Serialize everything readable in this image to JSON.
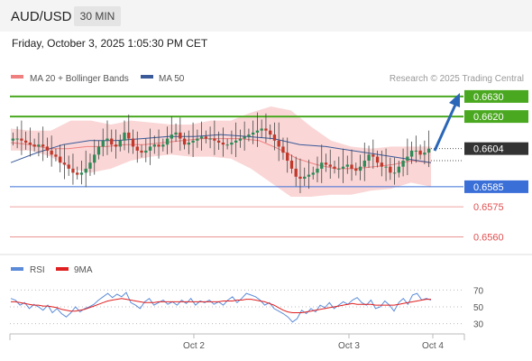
{
  "header": {
    "symbol": "AUD/USD",
    "timeframe": "30 MIN",
    "datetime": "Friday, October 3, 2025 1:05:30 PM CET"
  },
  "legend": [
    {
      "label": "MA 20 + Bollinger Bands",
      "color": "#f08080"
    },
    {
      "label": "MA 50",
      "color": "#3a5a9a"
    }
  ],
  "credit": "Research © 2025 Trading Central",
  "chart_data": {
    "type": "candlestick",
    "price_range": [
      0.6553,
      0.6634
    ],
    "levels": [
      {
        "value": 0.663,
        "label": "0.6630",
        "kind": "resistance",
        "color": "#4aa820"
      },
      {
        "value": 0.662,
        "label": "0.6620",
        "kind": "resistance",
        "color": "#4aa820"
      },
      {
        "value": 0.6604,
        "label": "0.6604",
        "kind": "last",
        "color": "#333333"
      },
      {
        "value": 0.6585,
        "label": "0.6585",
        "kind": "pivot",
        "color": "#3a6fd8"
      },
      {
        "value": 0.6575,
        "label": "0.6575",
        "kind": "support",
        "color": "#e05050"
      },
      {
        "value": 0.656,
        "label": "0.6560",
        "kind": "support",
        "color": "#e05050"
      }
    ],
    "x_ticks": [
      "Oct 2",
      "Oct 3",
      "Oct 4"
    ],
    "closes": [
      0.6609,
      0.6609,
      0.6608,
      0.6607,
      0.6606,
      0.6605,
      0.6606,
      0.6605,
      0.6603,
      0.6601,
      0.66,
      0.6597,
      0.6596,
      0.6594,
      0.6592,
      0.6591,
      0.6592,
      0.6594,
      0.6597,
      0.6601,
      0.6605,
      0.6608,
      0.6609,
      0.6606,
      0.6605,
      0.6608,
      0.6612,
      0.6609,
      0.6605,
      0.6603,
      0.6602,
      0.6603,
      0.6605,
      0.6606,
      0.6605,
      0.6606,
      0.6609,
      0.6611,
      0.6612,
      0.6609,
      0.6606,
      0.6607,
      0.6608,
      0.6609,
      0.661,
      0.6609,
      0.6609,
      0.6608,
      0.6607,
      0.6606,
      0.6606,
      0.6607,
      0.6608,
      0.6609,
      0.661,
      0.6611,
      0.6612,
      0.6613,
      0.6614,
      0.6613,
      0.6611,
      0.6608,
      0.6605,
      0.6602,
      0.6598,
      0.6594,
      0.659,
      0.6589,
      0.659,
      0.6591,
      0.6592,
      0.6594,
      0.6597,
      0.6596,
      0.6595,
      0.6594,
      0.6594,
      0.6595,
      0.6596,
      0.6594,
      0.6593,
      0.6595,
      0.6598,
      0.6601,
      0.66,
      0.6597,
      0.6595,
      0.6595,
      0.6592,
      0.6592,
      0.6595,
      0.6598,
      0.66,
      0.6603,
      0.6603,
      0.6601,
      0.6602,
      0.6604
    ],
    "ma20_points": [
      0.6607,
      0.6606,
      0.6604,
      0.6604,
      0.6605,
      0.6605,
      0.6606,
      0.6606,
      0.6607,
      0.6608,
      0.6609,
      0.6609,
      0.6609,
      0.6608,
      0.6604,
      0.6599,
      0.6596,
      0.6594,
      0.6594,
      0.6595,
      0.6596,
      0.6598,
      0.6597
    ],
    "ma50_points": [
      0.6597,
      0.6602,
      0.6606,
      0.6608,
      0.6608,
      0.6609,
      0.661,
      0.661,
      0.6611,
      0.661,
      0.6609,
      0.6606,
      0.6605,
      0.6603,
      0.6601,
      0.6599,
      0.6597
    ],
    "bb_upper_points": [
      0.6614,
      0.6613,
      0.6613,
      0.6618,
      0.6618,
      0.6616,
      0.6618,
      0.6617,
      0.6616,
      0.6616,
      0.6618,
      0.6618,
      0.6622,
      0.6625,
      0.6623,
      0.6615,
      0.6608,
      0.6605,
      0.6604,
      0.6605,
      0.6605,
      0.6605
    ],
    "bb_lower_points": [
      0.6603,
      0.6603,
      0.66,
      0.6594,
      0.6592,
      0.6594,
      0.6598,
      0.66,
      0.6601,
      0.66,
      0.66,
      0.6599,
      0.6594,
      0.6587,
      0.658,
      0.658,
      0.6581,
      0.6581,
      0.6583,
      0.6584,
      0.6587,
      0.6585
    ],
    "rsi_legend": [
      {
        "label": "RSI",
        "color": "#5b8bd8"
      },
      {
        "label": "9MA",
        "color": "#e02020"
      }
    ],
    "rsi_levels": [
      70,
      50,
      30
    ],
    "rsi": [
      60,
      58,
      52,
      55,
      48,
      53,
      50,
      46,
      52,
      43,
      48,
      42,
      38,
      43,
      50,
      44,
      48,
      50,
      53,
      58,
      62,
      66,
      61,
      65,
      62,
      67,
      55,
      52,
      48,
      56,
      60,
      52,
      55,
      58,
      53,
      56,
      52,
      58,
      54,
      60,
      52,
      57,
      55,
      58,
      53,
      56,
      52,
      58,
      62,
      55,
      60,
      66,
      64,
      62,
      58,
      52,
      55,
      48,
      45,
      42,
      38,
      32,
      36,
      46,
      42,
      48,
      44,
      52,
      49,
      55,
      48,
      52,
      56,
      53,
      58,
      61,
      55,
      52,
      58,
      48,
      50,
      57,
      52,
      45,
      55,
      60,
      53,
      64,
      66,
      58,
      60,
      58
    ],
    "rsi_ma": [
      56,
      56,
      55,
      54,
      53,
      52,
      52,
      51,
      51,
      50,
      49,
      47,
      46,
      45,
      45,
      46,
      47,
      49,
      51,
      53,
      55,
      57,
      58,
      59,
      60,
      59,
      58,
      57,
      56,
      55,
      55,
      55,
      56,
      56,
      56,
      56,
      56,
      56,
      56,
      56,
      56,
      56,
      56,
      56,
      56,
      56,
      57,
      57,
      57,
      58,
      58,
      59,
      59,
      58,
      57,
      56,
      54,
      52,
      49,
      46,
      44,
      43,
      43,
      43,
      44,
      45,
      46,
      47,
      48,
      49,
      50,
      51,
      52,
      53,
      54,
      53,
      53,
      53,
      53,
      52,
      52,
      52,
      52,
      52,
      53,
      54,
      55,
      56,
      57,
      58,
      59,
      59
    ]
  }
}
